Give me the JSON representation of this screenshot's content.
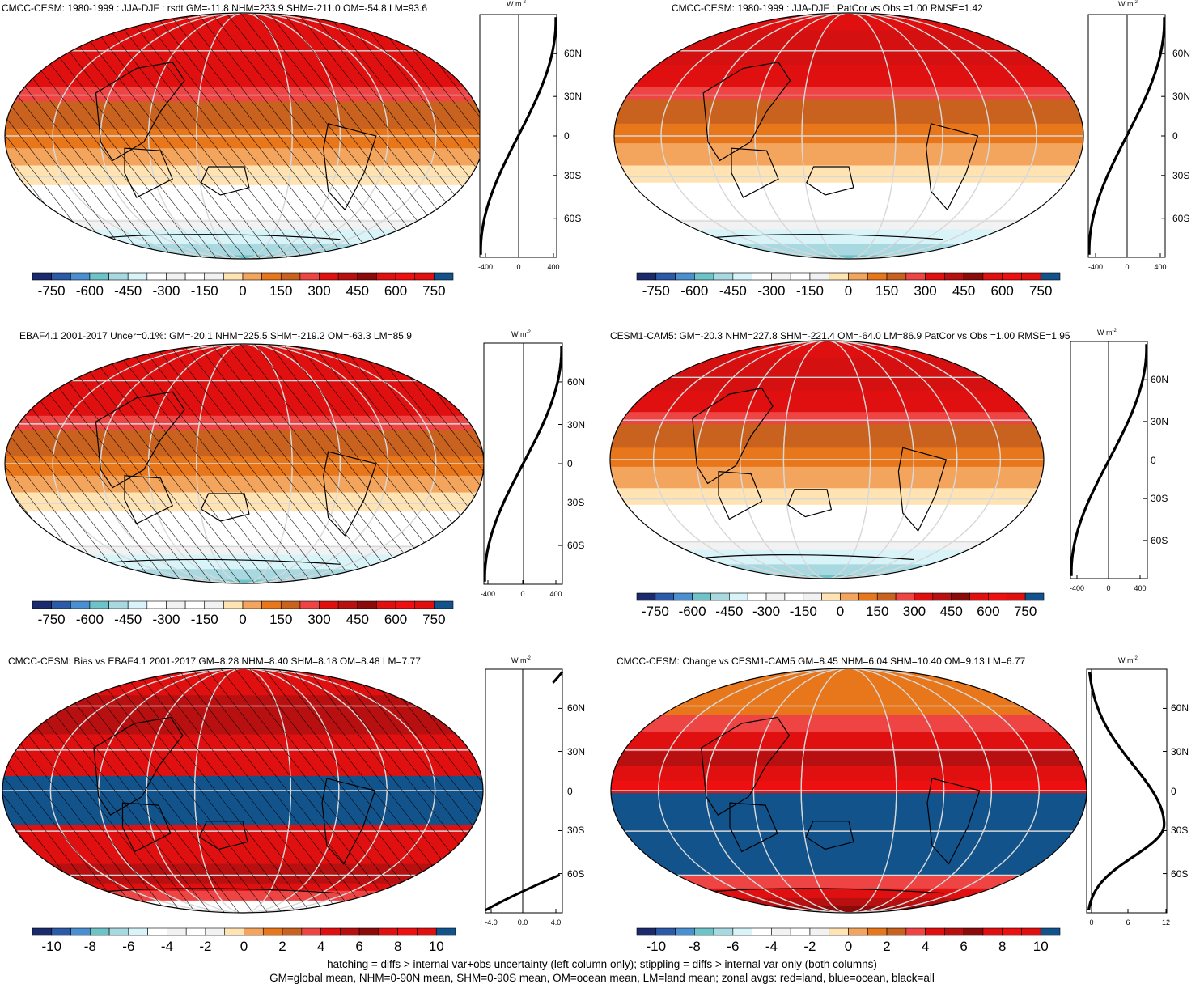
{
  "chart_data": [
    {
      "type": "heatmap",
      "title": "CMCC-CESM: 1980-1999 : JJA-DJF : rsdt GM=-11.8 NHM=233.9 SHM=-211.0 OM=-54.8 LM=93.6",
      "variable": "rsdt",
      "season": "JJA-DJF",
      "hatching": true,
      "lat_bands_top_to_bottom": [
        "red",
        "red",
        "dark-orange",
        "orange",
        "light-orange",
        "white",
        "white",
        "light-gray",
        "light-cyan",
        "light-blue"
      ],
      "zonal": {
        "unit": "W m-2",
        "xticks": [
          "-400",
          "0",
          "400"
        ],
        "xlim": [
          -450,
          450
        ],
        "lat": [
          -80,
          -60,
          -30,
          0,
          30,
          60,
          80
        ],
        "values": [
          -440,
          -370,
          -200,
          0,
          200,
          370,
          440
        ]
      },
      "colorbar": {
        "ticks": [
          "-750",
          "-600",
          "-450",
          "-300",
          "-150",
          "0",
          "150",
          "300",
          "450",
          "600",
          "750"
        ]
      }
    },
    {
      "type": "heatmap",
      "title": "CMCC-CESM: 1980-1999 : JJA-DJF : PatCor vs Obs =1.00 RMSE=1.42",
      "hatching": false,
      "zonal": {
        "unit": "W m-2",
        "xticks": [
          "-400",
          "0",
          "400"
        ],
        "xlim": [
          -450,
          450
        ],
        "lat": [
          -80,
          -60,
          -30,
          0,
          30,
          60,
          80
        ],
        "values": [
          -440,
          -370,
          -200,
          0,
          200,
          370,
          440
        ]
      },
      "colorbar": {
        "ticks": [
          "-750",
          "-600",
          "-450",
          "-300",
          "-150",
          "0",
          "150",
          "300",
          "450",
          "600",
          "750"
        ]
      }
    },
    {
      "type": "heatmap",
      "title": "EBAF4.1 2001-2017 Uncer=0.1%: GM=-20.1 NHM=225.5 SHM=-219.2 OM=-63.3 LM=85.9",
      "hatching": true,
      "zonal": {
        "unit": "W m-2",
        "xticks": [
          "-400",
          "0",
          "400"
        ],
        "xlim": [
          -450,
          450
        ],
        "lat": [
          -80,
          -60,
          -30,
          0,
          30,
          60,
          80
        ],
        "values": [
          -440,
          -370,
          -200,
          0,
          200,
          370,
          440
        ]
      },
      "colorbar": {
        "ticks": [
          "-750",
          "-600",
          "-450",
          "-300",
          "-150",
          "0",
          "150",
          "300",
          "450",
          "600",
          "750"
        ]
      }
    },
    {
      "type": "heatmap",
      "title": "CESM1-CAM5: GM=-20.3 NHM=227.8 SHM=-221.4 OM=-64.0 LM=86.9 PatCor vs Obs =1.00 RMSE=1.95",
      "hatching": false,
      "zonal": {
        "unit": "W m-2",
        "xticks": [
          "-400",
          "0",
          "400"
        ],
        "xlim": [
          -450,
          450
        ],
        "lat": [
          -80,
          -60,
          -30,
          0,
          30,
          60,
          80
        ],
        "values": [
          -440,
          -370,
          -200,
          0,
          200,
          370,
          440
        ]
      },
      "colorbar": {
        "ticks": [
          "-750",
          "-600",
          "-450",
          "-300",
          "-150",
          "0",
          "150",
          "300",
          "450",
          "600",
          "750"
        ]
      }
    },
    {
      "type": "heatmap",
      "title": "CMCC-CESM: Bias vs EBAF4.1 2001-2017 GM=8.28 NHM=8.40 SHM=8.18 OM=8.48 LM=7.77",
      "hatching": true,
      "zonal": {
        "unit": "W m-2",
        "xticks": [
          "-4.0",
          "0.0",
          "4.0"
        ],
        "xlim": [
          -4.5,
          4.5
        ],
        "lat": [
          -80,
          -70,
          -60,
          70,
          80
        ],
        "values": [
          -4.5,
          -1.0,
          3.8,
          3.6,
          4.5
        ]
      },
      "colorbar": {
        "ticks": [
          "-10",
          "-8",
          "-6",
          "-4",
          "-2",
          "0",
          "2",
          "4",
          "6",
          "8",
          "10"
        ]
      }
    },
    {
      "type": "heatmap",
      "title": "CMCC-CESM: Change vs CESM1-CAM5 GM=8.45 NHM=6.04 SHM=10.40 OM=9.13 LM=6.77",
      "hatching": false,
      "zonal": {
        "unit": "W m-2",
        "xticks": [
          "0",
          "6",
          "12"
        ],
        "xlim": [
          0,
          12
        ],
        "lat": [
          -80,
          -60,
          -45,
          -30,
          -20,
          0,
          30,
          60,
          80
        ],
        "values": [
          0.5,
          4,
          9,
          11.6,
          11.0,
          7.5,
          5,
          1.5,
          0.3
        ]
      },
      "colorbar": {
        "ticks": [
          "-10",
          "-8",
          "-6",
          "-4",
          "-2",
          "0",
          "2",
          "4",
          "6",
          "8",
          "10"
        ]
      }
    }
  ],
  "lat_ticks": [
    "60N",
    "30N",
    "0",
    "30S",
    "60S"
  ],
  "colors": {
    "palette": [
      "#1a2a6c",
      "#2a5aa8",
      "#4a8fd0",
      "#6ec3c9",
      "#a8d8e0",
      "#d8f4f8",
      "#ffffff",
      "#f2f2f2",
      "#ffe3b3",
      "#f3a55e",
      "#e8761a",
      "#c9621e",
      "#ee4444",
      "#e01010",
      "#b81010",
      "#8b0a0a",
      "#e01010",
      "#ee1010",
      "#13538c"
    ]
  },
  "footer": {
    "line1": "hatching = diffs > internal var+obs uncertainty (left column only); stippling = diffs > internal var only (both columns)",
    "line2": "GM=global mean, NHM=0-90N mean, SHM=0-90S mean, OM=ocean mean, LM=land mean; zonal avgs: red=land, blue=ocean, black=all"
  }
}
